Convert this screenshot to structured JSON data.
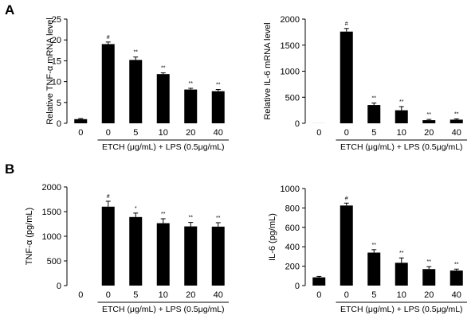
{
  "panel_labels": [
    "A",
    "B"
  ],
  "treatment_label": "ETCH (μg/mL) + LPS (0.5μg/mL)",
  "chart_data": [
    {
      "type": "bar",
      "panel": "A",
      "ylabel": "Relative TNF-α mRNA level",
      "categories": [
        "0",
        "0",
        "5",
        "10",
        "20",
        "40"
      ],
      "values": [
        1,
        19,
        15.2,
        11.8,
        8.1,
        7.7
      ],
      "errors": [
        0.15,
        0.5,
        0.7,
        0.3,
        0.3,
        0.4
      ],
      "annotations": [
        "",
        "#",
        "**",
        "**",
        "**",
        "**"
      ],
      "ylim": [
        0,
        25
      ],
      "yticks": [
        0,
        5,
        10,
        15,
        20,
        25
      ],
      "treatment_label": "ETCH (μg/mL) + LPS (0.5μg/mL)"
    },
    {
      "type": "bar",
      "panel": "A",
      "ylabel": "Relative IL-6 mRNA level",
      "categories": [
        "0",
        "0",
        "5",
        "10",
        "20",
        "40"
      ],
      "values": [
        1,
        1760,
        350,
        250,
        60,
        70
      ],
      "errors": [
        0,
        60,
        40,
        70,
        15,
        15
      ],
      "annotations": [
        "",
        "#",
        "**",
        "**",
        "**",
        "**"
      ],
      "ylim": [
        0,
        2000
      ],
      "yticks": [
        0,
        500,
        1000,
        1500,
        2000
      ],
      "treatment_label": "ETCH (μg/mL) + LPS (0.5μg/mL)"
    },
    {
      "type": "bar",
      "panel": "B",
      "ylabel": "TNF-α (pg/mL)",
      "categories": [
        "0",
        "0",
        "5",
        "10",
        "20",
        "40"
      ],
      "values": [
        0,
        1600,
        1390,
        1265,
        1200,
        1195
      ],
      "errors": [
        0,
        110,
        80,
        90,
        80,
        80
      ],
      "annotations": [
        "",
        "#",
        "*",
        "**",
        "**",
        "**"
      ],
      "ylim": [
        0,
        2000
      ],
      "yticks": [
        0,
        500,
        1000,
        1500,
        2000
      ],
      "treatment_label": "ETCH (μg/mL) + LPS (0.5μg/mL)"
    },
    {
      "type": "bar",
      "panel": "B",
      "ylabel": "IL-6 (pg/mL)",
      "categories": [
        "0",
        "0",
        "5",
        "10",
        "20",
        "40"
      ],
      "values": [
        85,
        825,
        340,
        235,
        170,
        155
      ],
      "errors": [
        10,
        25,
        30,
        50,
        25,
        15
      ],
      "annotations": [
        "",
        "#",
        "**",
        "**",
        "**",
        "**"
      ],
      "ylim": [
        0,
        1000
      ],
      "yticks": [
        0,
        200,
        400,
        600,
        800,
        1000
      ],
      "treatment_label": "ETCH (μg/mL) + LPS (0.5μg/mL)"
    }
  ]
}
